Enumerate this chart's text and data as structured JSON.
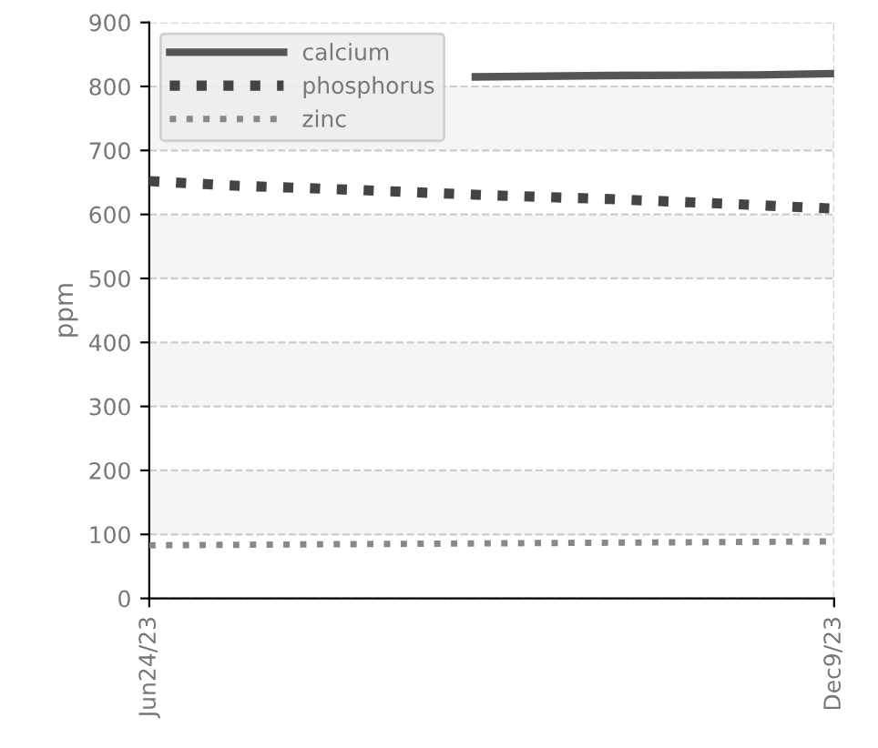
{
  "chart_data": {
    "type": "line",
    "ylabel": "ppm",
    "xlim": [
      "2023-06-24",
      "2023-12-09"
    ],
    "xticks": [
      {
        "value": "2023-06-24",
        "label": "Jun24/23"
      },
      {
        "value": "2023-12-09",
        "label": "Dec9/23"
      }
    ],
    "ylim": [
      0,
      900
    ],
    "yticks": [
      0,
      100,
      200,
      300,
      400,
      500,
      600,
      700,
      800,
      900
    ],
    "grid": true,
    "legend": "top left",
    "bands": [
      {
        "axis": "y",
        "from": 100,
        "to": 200,
        "color": "#f5f5f5"
      },
      {
        "axis": "y",
        "from": 300,
        "to": 400,
        "color": "#f5f5f5"
      },
      {
        "axis": "y",
        "from": 500,
        "to": 600,
        "color": "#f5f5f5"
      },
      {
        "axis": "y",
        "from": 700,
        "to": 800,
        "color": "#f5f5f5"
      }
    ],
    "series": [
      {
        "name": "calcium",
        "color": "#555555",
        "line_style": "solid",
        "x": [
          "2023-09-12",
          "2023-10-15",
          "2023-11-20",
          "2023-12-09"
        ],
        "values": [
          815,
          817,
          818,
          820
        ]
      },
      {
        "name": "phosphorus",
        "color": "#444444",
        "line_style": "dotted",
        "x": [
          "2023-06-24",
          "2023-07-15",
          "2023-08-15",
          "2023-09-15",
          "2023-10-15",
          "2023-11-15",
          "2023-12-09"
        ],
        "values": [
          652,
          645,
          638,
          630,
          624,
          616,
          609
        ]
      },
      {
        "name": "zinc",
        "color": "#888888",
        "line_style": "dotted",
        "x": [
          "2023-06-24",
          "2023-09-15",
          "2023-12-09"
        ],
        "values": [
          83,
          86,
          89
        ]
      }
    ]
  }
}
